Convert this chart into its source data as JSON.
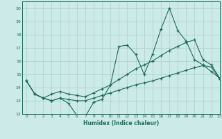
{
  "xlabel": "Humidex (Indice chaleur)",
  "xlim": [
    -0.5,
    23
  ],
  "ylim": [
    12,
    20.5
  ],
  "yticks": [
    12,
    13,
    14,
    15,
    16,
    17,
    18,
    19,
    20
  ],
  "xticks": [
    0,
    1,
    2,
    3,
    4,
    5,
    6,
    7,
    8,
    9,
    10,
    11,
    12,
    13,
    14,
    15,
    16,
    17,
    18,
    19,
    20,
    21,
    22,
    23
  ],
  "bg_color": "#cceae7",
  "grid_color": "#aacfcc",
  "line_color": "#1a6b5a",
  "series1_x": [
    0,
    1,
    2,
    3,
    4,
    5,
    6,
    7,
    8,
    9,
    10,
    11,
    12,
    13,
    14,
    15,
    16,
    17,
    18,
    19,
    20,
    21,
    22,
    23
  ],
  "series1_y": [
    14.5,
    13.5,
    13.2,
    13.0,
    13.2,
    12.8,
    11.9,
    11.8,
    12.9,
    13.1,
    14.2,
    17.1,
    17.2,
    16.5,
    15.0,
    16.5,
    18.4,
    20.0,
    18.3,
    17.5,
    16.1,
    15.7,
    15.2,
    14.7
  ],
  "series2_x": [
    0,
    1,
    2,
    3,
    4,
    5,
    6,
    7,
    8,
    9,
    10,
    11,
    12,
    13,
    14,
    15,
    16,
    17,
    18,
    19,
    20,
    21,
    22,
    23
  ],
  "series2_y": [
    14.5,
    13.5,
    13.2,
    13.5,
    13.7,
    13.5,
    13.4,
    13.3,
    13.6,
    13.9,
    14.2,
    14.6,
    15.0,
    15.4,
    15.7,
    16.0,
    16.4,
    16.8,
    17.1,
    17.4,
    17.6,
    16.1,
    15.7,
    14.7
  ],
  "series3_x": [
    0,
    1,
    2,
    3,
    4,
    5,
    6,
    7,
    8,
    9,
    10,
    11,
    12,
    13,
    14,
    15,
    16,
    17,
    18,
    19,
    20,
    21,
    22,
    23
  ],
  "series3_y": [
    14.5,
    13.5,
    13.2,
    13.0,
    13.2,
    13.1,
    13.0,
    13.0,
    13.2,
    13.4,
    13.6,
    13.8,
    14.0,
    14.2,
    14.35,
    14.5,
    14.7,
    14.9,
    15.1,
    15.3,
    15.5,
    15.65,
    15.55,
    14.6
  ]
}
